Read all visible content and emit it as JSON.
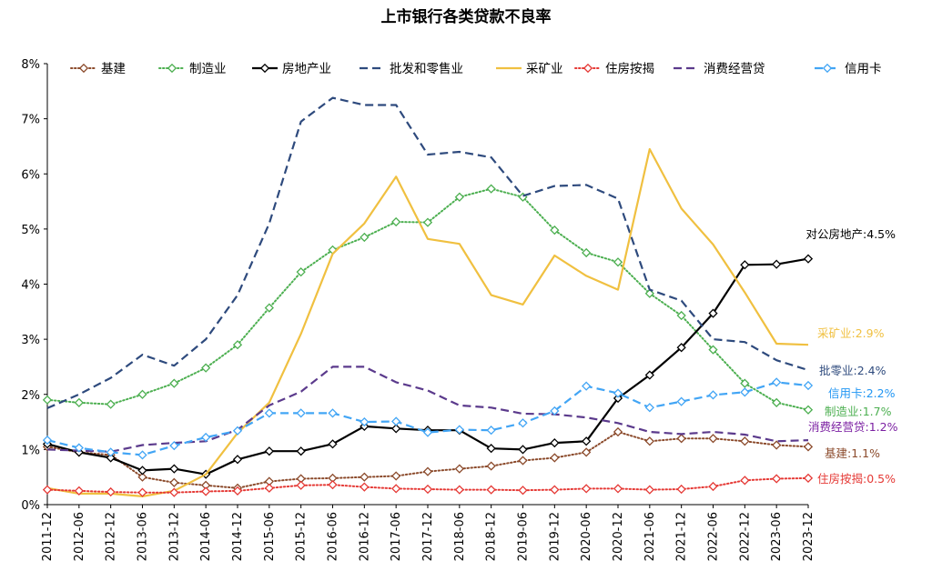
{
  "chart_data": {
    "type": "line",
    "title": "上市银行各类贷款不良率",
    "x": [
      "2011-12",
      "2012-06",
      "2012-12",
      "2013-06",
      "2013-12",
      "2014-06",
      "2014-12",
      "2015-06",
      "2015-12",
      "2016-06",
      "2016-12",
      "2017-06",
      "2017-12",
      "2018-06",
      "2018-12",
      "2019-06",
      "2019-12",
      "2020-06",
      "2020-12",
      "2021-06",
      "2021-12",
      "2022-06",
      "2022-12",
      "2023-06",
      "2023-12"
    ],
    "y_ticks": [
      "0%",
      "1%",
      "2%",
      "3%",
      "4%",
      "5%",
      "6%",
      "7%",
      "8%"
    ],
    "ylim": [
      0,
      8
    ],
    "grid": false,
    "legend_position": "top",
    "series": [
      {
        "name": "基建",
        "color": "#8B4A2B",
        "dash": "dotted",
        "marker": "diamond",
        "values": [
          1.05,
          0.95,
          0.9,
          0.5,
          0.4,
          0.35,
          0.3,
          0.42,
          0.47,
          0.48,
          0.5,
          0.52,
          0.6,
          0.65,
          0.7,
          0.8,
          0.85,
          0.95,
          1.32,
          1.15,
          1.2,
          1.2,
          1.15,
          1.08,
          1.05
        ],
        "end_label": "基建:1.1%",
        "label_color": "#8B4A2B"
      },
      {
        "name": "制造业",
        "color": "#4CAF50",
        "dash": "dotted",
        "marker": "diamond",
        "values": [
          1.9,
          1.85,
          1.82,
          2.0,
          2.2,
          2.48,
          2.9,
          3.57,
          4.22,
          4.62,
          4.85,
          5.13,
          5.12,
          5.58,
          5.73,
          5.58,
          4.98,
          4.57,
          4.4,
          3.83,
          3.43,
          2.81,
          2.2,
          1.85,
          1.72
        ],
        "end_label": "制造业:1.7%",
        "label_color": "#4CAF50"
      },
      {
        "name": "房地产业",
        "color": "#000000",
        "dash": "solid",
        "marker": "diamond",
        "values": [
          1.1,
          0.95,
          0.85,
          0.62,
          0.65,
          0.55,
          0.82,
          0.97,
          0.97,
          1.1,
          1.42,
          1.38,
          1.35,
          1.35,
          1.02,
          1.0,
          1.12,
          1.15,
          1.93,
          2.35,
          2.85,
          3.47,
          4.35,
          4.36,
          4.46
        ],
        "end_label": "对公房地产:4.5%",
        "label_color": "#000000"
      },
      {
        "name": "批发和零售业",
        "color": "#2E4A7D",
        "dash": "dashed",
        "marker": "none",
        "values": [
          1.75,
          2.0,
          2.3,
          2.72,
          2.52,
          3.0,
          3.8,
          5.1,
          6.95,
          7.38,
          7.25,
          7.25,
          6.35,
          6.4,
          6.3,
          5.6,
          5.78,
          5.8,
          5.55,
          3.9,
          3.7,
          3.0,
          2.95,
          2.62,
          2.44
        ],
        "end_label": "批零业:2.4%",
        "label_color": "#2E4A7D"
      },
      {
        "name": "采矿业",
        "color": "#F0C040",
        "dash": "solid",
        "marker": "none",
        "values": [
          0.3,
          0.2,
          0.2,
          0.15,
          0.25,
          0.55,
          1.3,
          1.85,
          3.1,
          4.55,
          5.1,
          5.95,
          4.82,
          4.73,
          3.8,
          3.63,
          4.52,
          4.15,
          3.9,
          6.45,
          5.37,
          4.72,
          3.85,
          2.92,
          2.9
        ],
        "end_label": "采矿业:2.9%",
        "label_color": "#F0C040"
      },
      {
        "name": "住房按揭",
        "color": "#E53935",
        "dash": "dotted",
        "marker": "diamond",
        "values": [
          0.27,
          0.25,
          0.23,
          0.22,
          0.22,
          0.24,
          0.25,
          0.3,
          0.35,
          0.36,
          0.32,
          0.29,
          0.28,
          0.27,
          0.27,
          0.26,
          0.27,
          0.29,
          0.29,
          0.27,
          0.28,
          0.33,
          0.44,
          0.47,
          0.48
        ],
        "end_label": "住房按揭:0.5%",
        "label_color": "#E53935"
      },
      {
        "name": "消费经营贷",
        "color": "#5B3A8C",
        "dash": "dashed",
        "marker": "none",
        "values": [
          1.0,
          0.98,
          0.96,
          1.08,
          1.12,
          1.15,
          1.36,
          1.8,
          2.05,
          2.5,
          2.5,
          2.22,
          2.07,
          1.8,
          1.76,
          1.65,
          1.64,
          1.58,
          1.48,
          1.32,
          1.28,
          1.32,
          1.27,
          1.15,
          1.17
        ],
        "end_label": "消费经营贷:1.2%",
        "label_color": "#7B1FA2"
      },
      {
        "name": "信用卡",
        "color": "#42A5F5",
        "dash": "dashed",
        "marker": "diamond",
        "values": [
          1.17,
          1.03,
          0.95,
          0.9,
          1.07,
          1.22,
          1.34,
          1.66,
          1.66,
          1.66,
          1.5,
          1.51,
          1.31,
          1.36,
          1.35,
          1.48,
          1.7,
          2.15,
          2.02,
          1.76,
          1.87,
          1.99,
          2.04,
          2.22,
          2.16
        ],
        "end_label": "信用卡:2.2%",
        "label_color": "#2196F3"
      }
    ]
  }
}
